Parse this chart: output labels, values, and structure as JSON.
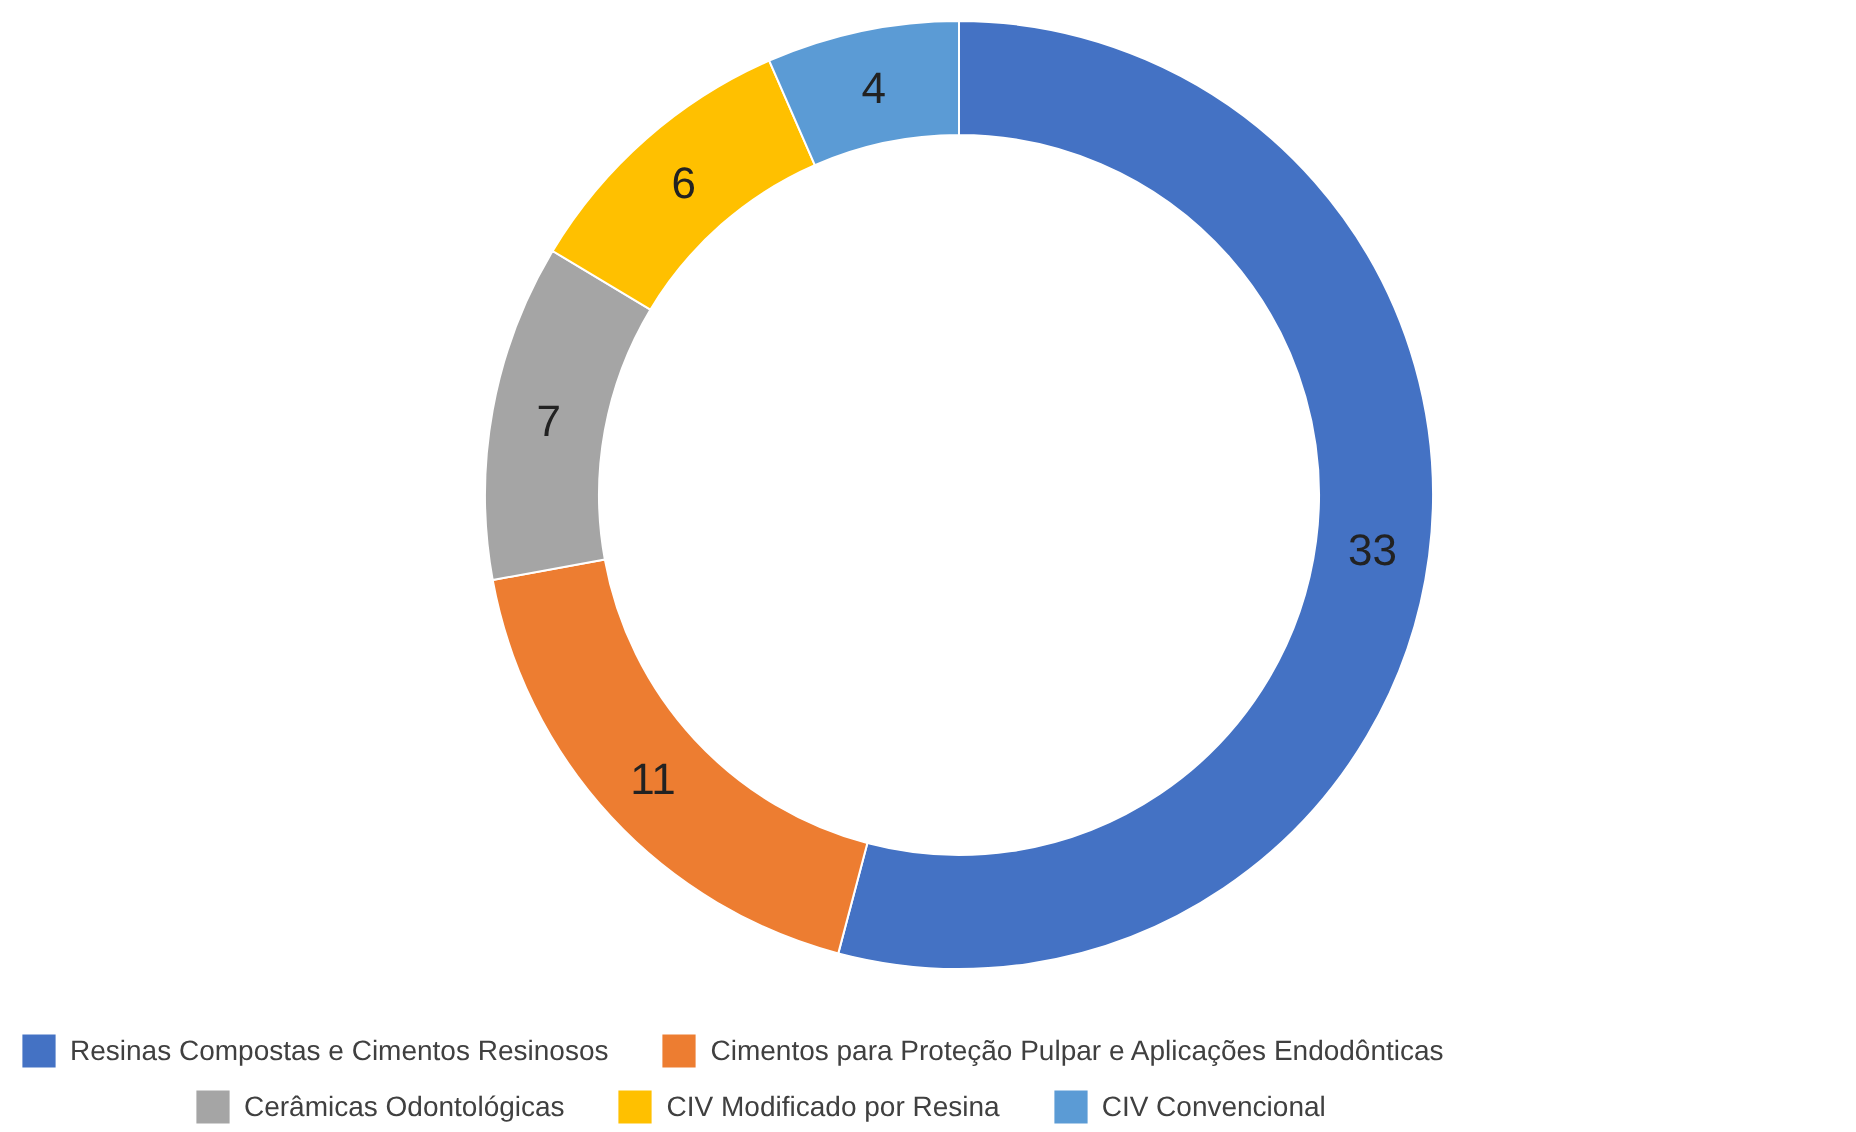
{
  "chart_data": {
    "type": "donut",
    "categories": [
      "Resinas Compostas e Cimentos Resinosos",
      "Cimentos para Proteção Pulpar e Aplicações Endodônticas",
      "Cerâmicas Odontológicas",
      "CIV Modificado por Resina",
      "CIV Convencional"
    ],
    "values": [
      33,
      11,
      7,
      6,
      4
    ],
    "colors": [
      "#4472c4",
      "#ed7d31",
      "#a5a5a5",
      "#ffc000",
      "#5b9bd5"
    ],
    "data_labels": true,
    "legend": "bottom"
  }
}
